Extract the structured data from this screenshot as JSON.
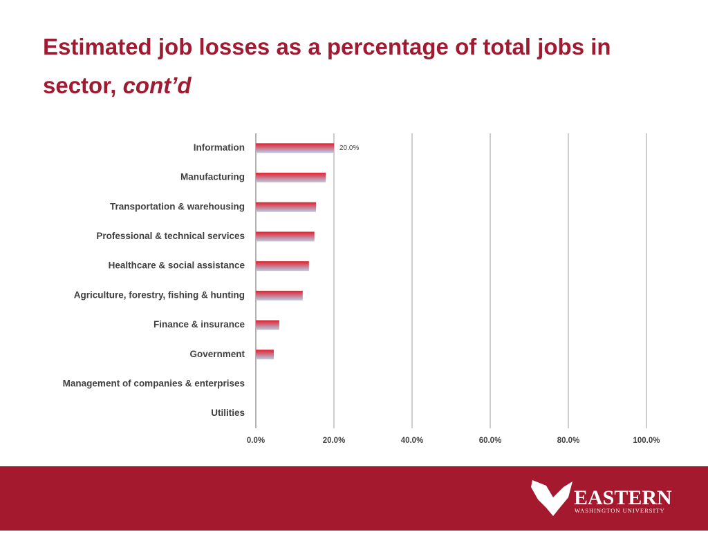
{
  "chart_data": {
    "type": "barh",
    "title": "Estimated job losses as a percentage of total jobs in sector,",
    "title_italic": "cont’d",
    "categories": [
      "Information",
      "Manufacturing",
      "Transportation & warehousing",
      "Professional & technical services",
      "Healthcare & social assistance",
      "Agriculture, forestry, fishing & hunting",
      "Finance & insurance",
      "Government",
      "Management of companies & enterprises",
      "Utilities"
    ],
    "values": [
      20.0,
      17.9,
      15.4,
      15.0,
      13.6,
      12.0,
      6.0,
      4.6,
      0,
      0
    ],
    "value_labels": [
      "20.0%",
      null,
      null,
      null,
      null,
      null,
      null,
      null,
      null,
      null
    ],
    "colors": [
      "#e0202e",
      "#b9cbe4"
    ],
    "xlim": [
      0,
      100
    ],
    "xticks": [
      {
        "value": 0,
        "label": "0.0%"
      },
      {
        "value": 20,
        "label": "20.0%"
      },
      {
        "value": 40,
        "label": "40.0%"
      },
      {
        "value": 60,
        "label": "60.0%"
      },
      {
        "value": 80,
        "label": "80.0%"
      },
      {
        "value": 100,
        "label": "100.0%"
      }
    ],
    "grid": true
  },
  "footer": {
    "logo": "EASTERN",
    "logo_sub": "WASHINGTON UNIVERSITY"
  }
}
